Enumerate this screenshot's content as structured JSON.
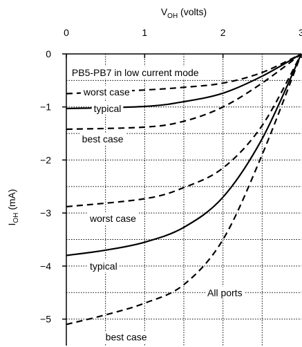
{
  "chart_data": {
    "type": "line",
    "title": "",
    "xlabel": {
      "main": "V",
      "sub": "OH",
      "unit": " (volts)"
    },
    "ylabel": {
      "main": "I",
      "sub": "OH",
      "unit": " (mA)"
    },
    "xlim": [
      0,
      3
    ],
    "ylim": [
      -5.5,
      0
    ],
    "x_ticks": [
      {
        "value": 0,
        "label": "0"
      },
      {
        "value": 1,
        "label": "1"
      },
      {
        "value": 2,
        "label": "2"
      },
      {
        "value": 3,
        "label": "3"
      }
    ],
    "y_ticks": [
      {
        "value": 0,
        "label": "0"
      },
      {
        "value": -1,
        "label": "−1"
      },
      {
        "value": -2,
        "label": "−2"
      },
      {
        "value": -3,
        "label": "−3"
      },
      {
        "value": -4,
        "label": "−4"
      },
      {
        "value": -5,
        "label": "−5"
      }
    ],
    "grid": true,
    "series": [
      {
        "style": "dashed",
        "points": [
          [
            0,
            -0.75
          ],
          [
            1,
            -0.68
          ],
          [
            1.5,
            -0.63
          ],
          [
            2,
            -0.55
          ],
          [
            2.5,
            -0.35
          ],
          [
            3,
            0
          ]
        ]
      },
      {
        "style": "solid",
        "points": [
          [
            0,
            -1.03
          ],
          [
            1,
            -0.99
          ],
          [
            1.5,
            -0.9
          ],
          [
            2,
            -0.74
          ],
          [
            2.5,
            -0.42
          ],
          [
            3,
            0
          ]
        ]
      },
      {
        "style": "dashed",
        "points": [
          [
            0,
            -1.42
          ],
          [
            1,
            -1.38
          ],
          [
            1.5,
            -1.27
          ],
          [
            2,
            -1.0
          ],
          [
            2.5,
            -0.55
          ],
          [
            3,
            0
          ]
        ]
      },
      {
        "style": "dashed",
        "points": [
          [
            0,
            -2.88
          ],
          [
            1,
            -2.73
          ],
          [
            1.5,
            -2.52
          ],
          [
            2,
            -2.15
          ],
          [
            2.5,
            -1.35
          ],
          [
            3,
            0
          ]
        ]
      },
      {
        "style": "solid",
        "points": [
          [
            0,
            -3.8
          ],
          [
            0.5,
            -3.7
          ],
          [
            1,
            -3.55
          ],
          [
            1.5,
            -3.27
          ],
          [
            2,
            -2.7
          ],
          [
            2.5,
            -1.6
          ],
          [
            3,
            0
          ]
        ]
      },
      {
        "style": "dashed",
        "points": [
          [
            0,
            -5.1
          ],
          [
            0.5,
            -4.92
          ],
          [
            1,
            -4.7
          ],
          [
            1.5,
            -4.35
          ],
          [
            2,
            -3.5
          ],
          [
            2.5,
            -1.9
          ],
          [
            3,
            0
          ]
        ]
      }
    ],
    "annotations": [
      {
        "text": "PB5-PB7 in low current mode",
        "x": 0.07,
        "y": -0.35
      },
      {
        "text": "worst case",
        "x": 0.22,
        "y": -0.72
      },
      {
        "text": "typical",
        "x": 0.35,
        "y": -1.03
      },
      {
        "text": "best case",
        "x": 0.2,
        "y": -1.6
      },
      {
        "text": "worst case",
        "x": 0.3,
        "y": -3.1
      },
      {
        "text": "typical",
        "x": 0.3,
        "y": -4.0
      },
      {
        "text": "All ports",
        "x": 1.8,
        "y": -4.5
      },
      {
        "text": "best case",
        "x": 0.5,
        "y": -5.34
      }
    ]
  }
}
